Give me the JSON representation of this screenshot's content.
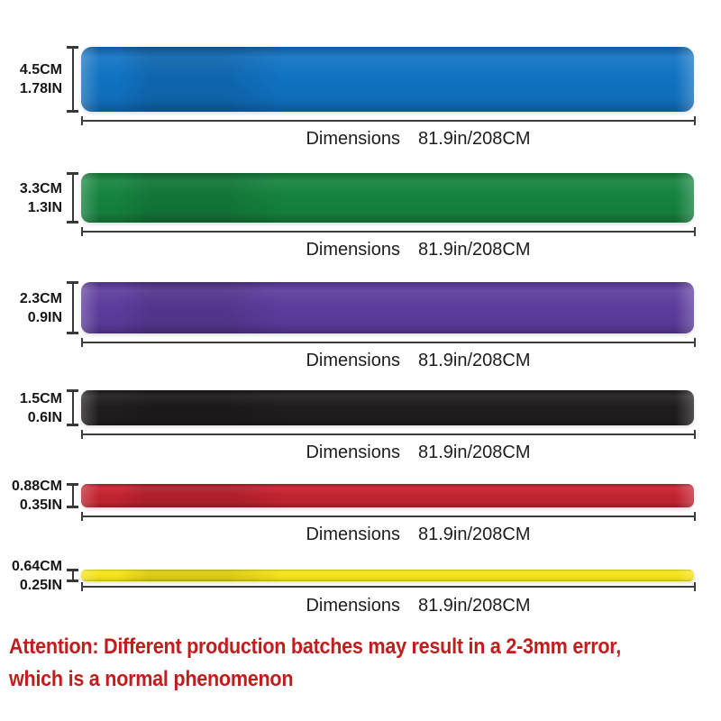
{
  "bands": [
    {
      "name": "blue",
      "color": "#1173c4",
      "size_cm": "4.5CM",
      "size_in": "1.78IN",
      "dim_label": "Dimensions",
      "dim_value": "81.9in/208CM"
    },
    {
      "name": "green",
      "color": "#15843f",
      "size_cm": "3.3CM",
      "size_in": "1.3IN",
      "dim_label": "Dimensions",
      "dim_value": "81.9in/208CM"
    },
    {
      "name": "purple",
      "color": "#5e3d9e",
      "size_cm": "2.3CM",
      "size_in": "0.9IN",
      "dim_label": "Dimensions",
      "dim_value": "81.9in/208CM"
    },
    {
      "name": "black",
      "color": "#211d1f",
      "size_cm": "1.5CM",
      "size_in": "0.6IN",
      "dim_label": "Dimensions",
      "dim_value": "81.9in/208CM"
    },
    {
      "name": "red",
      "color": "#c42431",
      "size_cm": "0.88CM",
      "size_in": "0.35IN",
      "dim_label": "Dimensions",
      "dim_value": "81.9in/208CM"
    },
    {
      "name": "yellow",
      "color": "#f6e41a",
      "size_cm": "0.64CM",
      "size_in": "0.25IN",
      "dim_label": "Dimensions",
      "dim_value": "81.9in/208CM"
    }
  ],
  "attention": {
    "color": "#c01d1d",
    "line1": "Attention: Different production batches may result in a 2-3mm error,",
    "line2": "which is a normal phenomenon"
  }
}
